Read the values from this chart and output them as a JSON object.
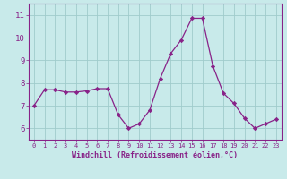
{
  "x": [
    0,
    1,
    2,
    3,
    4,
    5,
    6,
    7,
    8,
    9,
    10,
    11,
    12,
    13,
    14,
    15,
    16,
    17,
    18,
    19,
    20,
    21,
    22,
    23
  ],
  "y": [
    7.0,
    7.7,
    7.7,
    7.6,
    7.6,
    7.65,
    7.75,
    7.75,
    6.6,
    6.0,
    6.2,
    6.8,
    8.2,
    9.3,
    9.9,
    10.85,
    10.85,
    8.75,
    7.55,
    7.1,
    6.45,
    6.0,
    6.2,
    6.4
  ],
  "line_color": "#882288",
  "marker": "D",
  "marker_size": 2.2,
  "bg_color": "#c8eaea",
  "grid_color": "#a0cccc",
  "xlabel": "Windchill (Refroidissement éolien,°C)",
  "xlabel_color": "#882288",
  "tick_color": "#882288",
  "spine_color": "#882288",
  "ylim": [
    5.5,
    11.5
  ],
  "xlim": [
    -0.5,
    23.5
  ],
  "yticks": [
    6,
    7,
    8,
    9,
    10,
    11
  ],
  "xticks": [
    0,
    1,
    2,
    3,
    4,
    5,
    6,
    7,
    8,
    9,
    10,
    11,
    12,
    13,
    14,
    15,
    16,
    17,
    18,
    19,
    20,
    21,
    22,
    23
  ],
  "xlabel_fontsize": 6.0,
  "xtick_fontsize": 5.0,
  "ytick_fontsize": 6.5
}
